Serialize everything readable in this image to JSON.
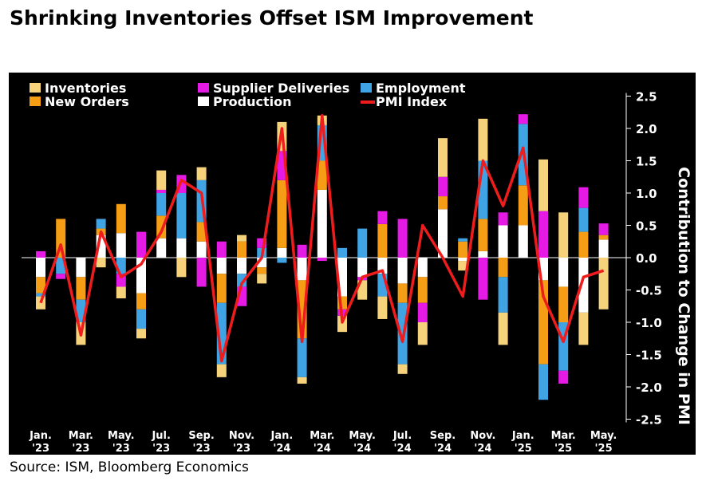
{
  "chart_data": {
    "type": "bar",
    "title": "Shrinking Inventories Offset ISM Improvement",
    "ylabel": "Contribution to Change in PMI",
    "source": "Source: ISM, Bloomberg Economics",
    "ylim": [
      -2.5,
      2.5
    ],
    "yticks": [
      "2.5",
      "2.0",
      "1.5",
      "1.0",
      "0.5",
      "0.0",
      "-0.5",
      "-1.0",
      "-1.5",
      "-2.0",
      "-2.5"
    ],
    "xtick_labels": [
      {
        "month": "Jan.",
        "year": "'23"
      },
      {
        "month": "Mar.",
        "year": "'23"
      },
      {
        "month": "May.",
        "year": "'23"
      },
      {
        "month": "Jul.",
        "year": "'23"
      },
      {
        "month": "Sep.",
        "year": "'23"
      },
      {
        "month": "Nov.",
        "year": "'23"
      },
      {
        "month": "Jan.",
        "year": "'24"
      },
      {
        "month": "Mar.",
        "year": "'24"
      },
      {
        "month": "May.",
        "year": "'24"
      },
      {
        "month": "Jul.",
        "year": "'24"
      },
      {
        "month": "Sep.",
        "year": "'24"
      },
      {
        "month": "Nov.",
        "year": "'24"
      },
      {
        "month": "Jan.",
        "year": "'25"
      },
      {
        "month": "Mar.",
        "year": "'25"
      },
      {
        "month": "May.",
        "year": "'25"
      }
    ],
    "categories": [
      "Jan 23",
      "Feb 23",
      "Mar 23",
      "Apr 23",
      "May 23",
      "Jun 23",
      "Jul 23",
      "Aug 23",
      "Sep 23",
      "Oct 23",
      "Nov 23",
      "Dec 23",
      "Jan 24",
      "Feb 24",
      "Mar 24",
      "Apr 24",
      "May 24",
      "Jun 24",
      "Jul 24",
      "Aug 24",
      "Sep 24",
      "Oct 24",
      "Nov 24",
      "Dec 24",
      "Jan 25",
      "Feb 25",
      "Mar 25",
      "Apr 25",
      "May 25"
    ],
    "legend": [
      {
        "label": "Inventories",
        "color": "#f6d27a",
        "kind": "bar"
      },
      {
        "label": "Supplier Deliveries",
        "color": "#e51ae5",
        "kind": "bar"
      },
      {
        "label": "Employment",
        "color": "#3fa3e4",
        "kind": "bar"
      },
      {
        "label": "New Orders",
        "color": "#f59d14",
        "kind": "bar"
      },
      {
        "label": "Production",
        "color": "#ffffff",
        "kind": "bar"
      },
      {
        "label": "PMI Index",
        "color": "#ee1c1c",
        "kind": "line"
      }
    ],
    "series": [
      {
        "name": "Production",
        "color": "#ffffff",
        "values": [
          -0.3,
          0.0,
          -0.3,
          0.35,
          0.38,
          -0.55,
          0.3,
          0.3,
          0.25,
          -0.25,
          -0.25,
          -0.15,
          0.15,
          -0.35,
          1.05,
          -0.6,
          -0.3,
          -0.25,
          -0.4,
          -0.3,
          0.75,
          -0.05,
          0.1,
          0.5,
          0.5,
          -0.35,
          -0.45,
          -0.85,
          0.28
        ]
      },
      {
        "name": "New Orders",
        "color": "#f59d14",
        "values": [
          -0.25,
          0.6,
          -0.35,
          0.1,
          0.45,
          -0.25,
          0.35,
          0.0,
          0.3,
          -0.45,
          0.25,
          -0.1,
          1.05,
          -0.9,
          0.45,
          -0.2,
          0.0,
          0.52,
          -0.3,
          -0.4,
          0.2,
          0.25,
          0.5,
          -0.3,
          0.62,
          -1.3,
          -0.55,
          0.4,
          0.07
        ]
      },
      {
        "name": "Employment",
        "color": "#3fa3e4",
        "values": [
          -0.05,
          -0.25,
          -0.35,
          0.15,
          -0.25,
          -0.3,
          0.35,
          0.7,
          0.65,
          -0.95,
          -0.2,
          0.15,
          -0.08,
          -0.6,
          0.55,
          0.15,
          0.45,
          -0.35,
          -0.95,
          0.0,
          0.0,
          0.05,
          0.9,
          -0.55,
          0.95,
          -0.55,
          -0.75,
          0.37,
          0.0
        ]
      },
      {
        "name": "Supplier Deliveries",
        "color": "#e51ae5",
        "values": [
          0.1,
          -0.08,
          0.0,
          0.0,
          -0.2,
          0.4,
          0.05,
          0.28,
          -0.45,
          0.25,
          -0.3,
          0.15,
          0.45,
          0.2,
          -0.05,
          -0.1,
          -0.05,
          0.2,
          0.6,
          -0.3,
          0.3,
          0.0,
          -0.65,
          0.2,
          0.15,
          0.72,
          -0.2,
          0.32,
          0.18
        ]
      },
      {
        "name": "Inventories",
        "color": "#f6d27a",
        "values": [
          -0.2,
          0.0,
          -0.35,
          -0.15,
          -0.18,
          -0.15,
          0.3,
          -0.3,
          0.2,
          -0.2,
          0.1,
          -0.15,
          0.45,
          -0.1,
          0.15,
          -0.25,
          -0.3,
          -0.35,
          -0.15,
          -0.35,
          0.6,
          -0.15,
          0.65,
          -0.5,
          0.0,
          0.8,
          0.7,
          -0.5,
          -0.8
        ]
      },
      {
        "name": "PMI Index",
        "color": "#ee1c1c",
        "kind": "line",
        "values": [
          -0.7,
          0.2,
          -1.2,
          0.4,
          -0.3,
          -0.1,
          0.4,
          1.2,
          1.0,
          -1.6,
          -0.4,
          0.0,
          2.0,
          -1.3,
          2.2,
          -1.0,
          -0.3,
          -0.2,
          -1.3,
          0.5,
          0.0,
          -0.6,
          1.5,
          0.8,
          1.7,
          -0.6,
          -1.3,
          -0.3,
          -0.2
        ]
      }
    ]
  }
}
